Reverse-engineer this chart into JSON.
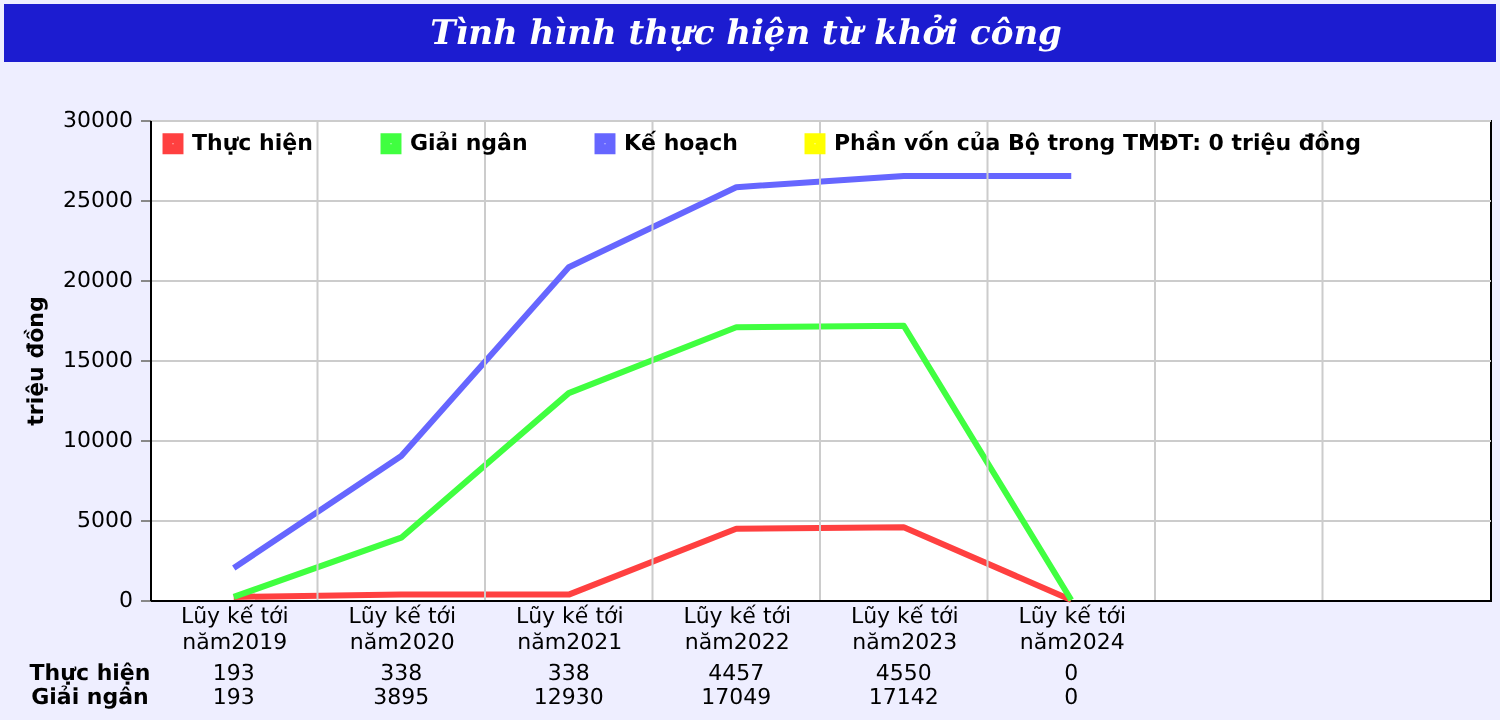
{
  "chart_data": {
    "type": "line",
    "title": "Tình hình thực hiện từ khởi công",
    "ylabel": "triệu đồng",
    "categories": [
      "Lũy kế tới năm2019",
      "Lũy kế tới năm2020",
      "Lũy kế tới năm2021",
      "Lũy kế tới năm2022",
      "Lũy kế tới năm2023",
      "Lũy kế tới năm2024",
      null,
      null
    ],
    "series": [
      {
        "name": "Thực hiện",
        "color": "#ff4040",
        "values": [
          193,
          338,
          338,
          4457,
          4550,
          0,
          null,
          null
        ],
        "value_labels": [
          "193",
          "338",
          "338",
          "4457",
          "4550",
          "0",
          null,
          null
        ]
      },
      {
        "name": "Giải ngân",
        "color": "#40ff40",
        "values": [
          193,
          3895,
          12930,
          17049,
          17142,
          0,
          null,
          null
        ],
        "value_labels": [
          "193",
          "3895",
          "12930",
          "17049",
          "17142",
          "0",
          null,
          null
        ]
      },
      {
        "name": "Kế hoạch",
        "color": "#6666ff",
        "values": [
          2000,
          9000,
          20800,
          25800,
          26500,
          26500,
          null,
          null
        ]
      },
      {
        "name": "Phần vốn của Bộ trong TMĐT: 0 triệu đồng",
        "color": "#ffff00",
        "values": [
          null,
          null,
          null,
          null,
          null,
          null,
          null,
          null
        ]
      }
    ],
    "ylim": [
      0,
      30000
    ],
    "yticks": [
      0,
      5000,
      10000,
      15000,
      20000,
      25000,
      30000
    ],
    "grid": true,
    "legend": "top left",
    "marker": "none",
    "line_style": "solid"
  }
}
